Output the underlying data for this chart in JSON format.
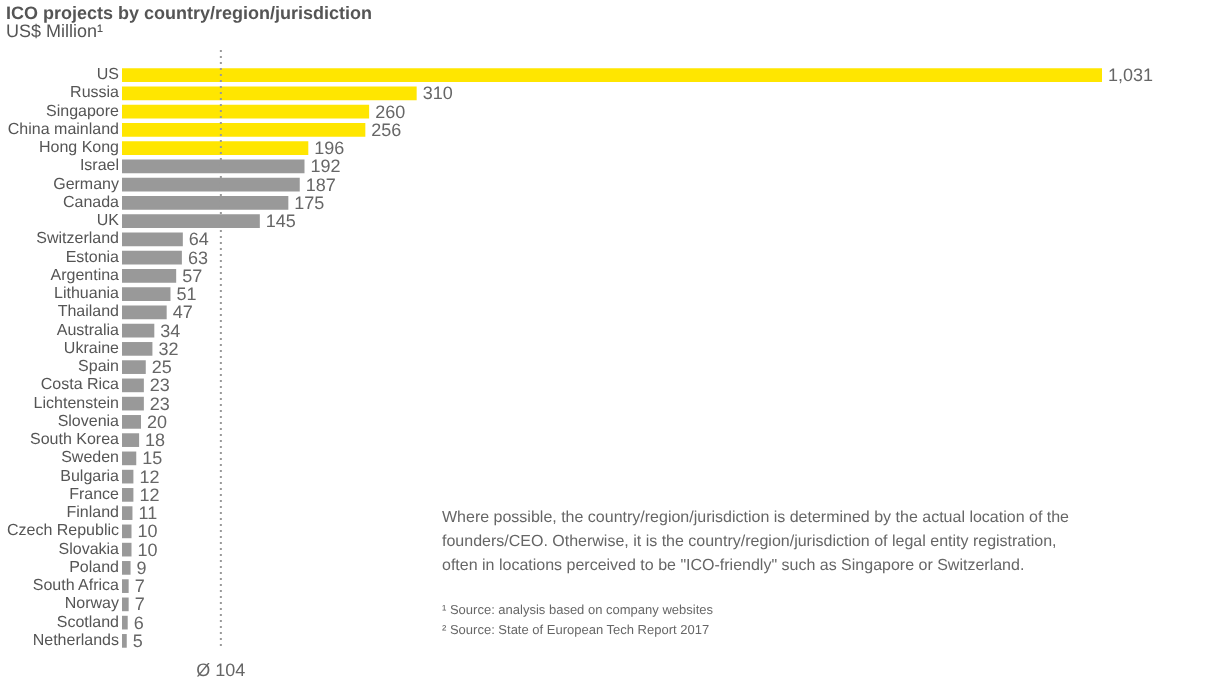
{
  "chart_data": {
    "type": "bar",
    "orientation": "horizontal",
    "title": "ICO projects by country/region/jurisdiction",
    "subtitle": "US$ Million¹",
    "categories": [
      "US",
      "Russia",
      "Singapore",
      "China mainland",
      "Hong Kong",
      "Israel",
      "Germany",
      "Canada",
      "UK",
      "Switzerland",
      "Estonia",
      "Argentina",
      "Lithuania",
      "Thailand",
      "Australia",
      "Ukraine",
      "Spain",
      "Costa Rica",
      "Lichtenstein",
      "Slovenia",
      "South Korea",
      "Sweden",
      "Bulgaria",
      "France",
      "Finland",
      "Czech Republic",
      "Slovakia",
      "Poland",
      "South Africa",
      "Norway",
      "Scotland",
      "Netherlands"
    ],
    "values": [
      1031,
      310,
      260,
      256,
      196,
      192,
      187,
      175,
      145,
      64,
      63,
      57,
      51,
      47,
      34,
      32,
      25,
      23,
      23,
      20,
      18,
      15,
      12,
      12,
      11,
      10,
      10,
      9,
      7,
      7,
      6,
      5
    ],
    "colors": [
      "#ffe600",
      "#ffe600",
      "#ffe600",
      "#ffe600",
      "#ffe600",
      "#999999",
      "#999999",
      "#999999",
      "#999999",
      "#999999",
      "#999999",
      "#999999",
      "#999999",
      "#999999",
      "#999999",
      "#999999",
      "#999999",
      "#999999",
      "#999999",
      "#999999",
      "#999999",
      "#999999",
      "#999999",
      "#999999",
      "#999999",
      "#999999",
      "#999999",
      "#999999",
      "#999999",
      "#999999",
      "#999999",
      "#999999"
    ],
    "value_labels": [
      "1,031",
      "310",
      "260",
      "256",
      "196",
      "192",
      "187",
      "175",
      "145",
      "64",
      "63",
      "57",
      "51",
      "47",
      "34",
      "32",
      "25",
      "23",
      "23",
      "20",
      "18",
      "15",
      "12",
      "12",
      "11",
      "10",
      "10",
      "9",
      "7",
      "7",
      "6",
      "5"
    ],
    "tick_labels": "y",
    "grid": false,
    "ref_lines": [
      {
        "axis": "x",
        "value": 104,
        "label": "Ø 104",
        "color": "#999999",
        "line_style": "dotted"
      }
    ],
    "annotations": [
      "Where possible, the country/region/jurisdiction is determined by the actual location of the",
      "founders/CEO. Otherwise, it is the country/region/jurisdiction of legal entity registration,",
      "often in locations perceived to be \"ICO-friendly\" such as Singapore or Switzerland.",
      "¹ Source: analysis based on company websites",
      "² Source: State of European Tech Report 2017"
    ]
  }
}
